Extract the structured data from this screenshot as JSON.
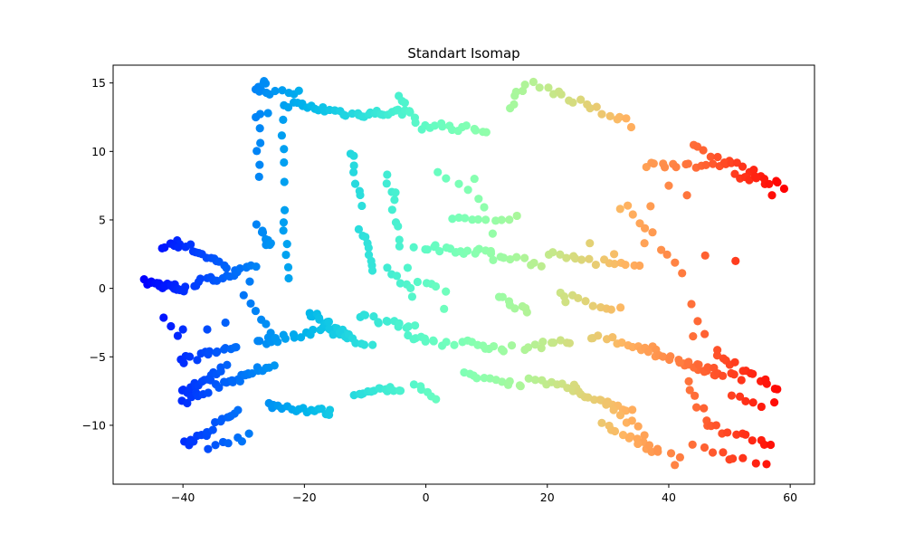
{
  "chart_data": {
    "type": "scatter",
    "title": "Standart Isomap",
    "xlabel": "",
    "ylabel": "",
    "xlim": [
      -51.5,
      64.0
    ],
    "ylim": [
      -14.3,
      16.3
    ],
    "xticks": [
      -40,
      -20,
      0,
      20,
      40,
      60
    ],
    "yticks": [
      -10,
      -5,
      0,
      5,
      10,
      15
    ],
    "xtick_labels": [
      "−40",
      "−20",
      "0",
      "20",
      "40",
      "60"
    ],
    "ytick_labels": [
      "−10",
      "−5",
      "0",
      "5",
      "10",
      "15"
    ],
    "grid": false,
    "colormap": "rainbow",
    "color_range": [
      -46,
      59
    ],
    "clusters": [
      {
        "from": [
          -46,
          0.45
        ],
        "to": [
          -39.5,
          -0.1
        ],
        "n": 22
      },
      {
        "from": [
          -41,
          3.5
        ],
        "to": [
          -33,
          1.6
        ],
        "n": 16
      },
      {
        "from": [
          -43.5,
          3.0
        ],
        "to": [
          -40.5,
          3.2
        ],
        "n": 6
      },
      {
        "from": [
          -38.5,
          0.3
        ],
        "to": [
          -28,
          1.5
        ],
        "n": 20
      },
      {
        "from": [
          -43,
          -2.0
        ],
        "to": [
          -40.5,
          -3.6
        ],
        "n": 3
      },
      {
        "from": [
          -40.5,
          -5.3
        ],
        "to": [
          -31,
          -4.2
        ],
        "n": 16
      },
      {
        "from": [
          -40.5,
          -7.7
        ],
        "to": [
          -33,
          -5.8
        ],
        "n": 18
      },
      {
        "from": [
          -40.5,
          -8.3
        ],
        "to": [
          -28,
          -6.0
        ],
        "n": 16
      },
      {
        "from": [
          -39.5,
          -11.4
        ],
        "to": [
          -31,
          -9.0
        ],
        "n": 18
      },
      {
        "from": [
          -36,
          -11.8
        ],
        "to": [
          -29,
          -10.8
        ],
        "n": 7
      },
      {
        "from": [
          -33,
          -7.0
        ],
        "to": [
          -25,
          -5.5
        ],
        "n": 12
      },
      {
        "from": [
          -28,
          -4.0
        ],
        "to": [
          -17,
          -3.0
        ],
        "n": 16
      },
      {
        "from": [
          -26,
          -8.5
        ],
        "to": [
          -15.5,
          -9.1
        ],
        "n": 18
      },
      {
        "from": [
          -27.5,
          14.7
        ],
        "to": [
          -26.5,
          15.2
        ],
        "n": 5
      },
      {
        "from": [
          -28,
          14.5
        ],
        "to": [
          -21,
          14.2
        ],
        "n": 9
      },
      {
        "from": [
          -27.5,
          12.5
        ],
        "to": [
          -27.5,
          8.2
        ],
        "n": 6
      },
      {
        "from": [
          -23.5,
          12.5
        ],
        "to": [
          -23,
          8.0
        ],
        "n": 5
      },
      {
        "from": [
          -27.5,
          4.5
        ],
        "to": [
          -25.5,
          3.0
        ],
        "n": 10
      },
      {
        "from": [
          -23.5,
          5.8
        ],
        "to": [
          -22.8,
          0.5
        ],
        "n": 7
      },
      {
        "from": [
          -29,
          -1.0
        ],
        "to": [
          -25,
          -3.8
        ],
        "n": 6
      },
      {
        "from": [
          -23,
          13.5
        ],
        "to": [
          -13,
          12.8
        ],
        "n": 18
      },
      {
        "from": [
          -12,
          12.7
        ],
        "to": [
          -3,
          12.9
        ],
        "n": 18
      },
      {
        "from": [
          -19.5,
          -1.7
        ],
        "to": [
          -13,
          -3.5
        ],
        "n": 16
      },
      {
        "from": [
          -16,
          -3.0
        ],
        "to": [
          -9,
          -4.3
        ],
        "n": 10
      },
      {
        "from": [
          -11.5,
          -7.7
        ],
        "to": [
          -4,
          -7.3
        ],
        "n": 16
      },
      {
        "from": [
          -11,
          -2.0
        ],
        "to": [
          -2,
          -2.8
        ],
        "n": 14
      },
      {
        "from": [
          -12.5,
          10.0
        ],
        "to": [
          -10.5,
          6.0
        ],
        "n": 8
      },
      {
        "from": [
          -6.5,
          8.5
        ],
        "to": [
          -4,
          3.0
        ],
        "n": 9
      },
      {
        "from": [
          -11,
          4.5
        ],
        "to": [
          -8.5,
          1.5
        ],
        "n": 8
      },
      {
        "from": [
          -6,
          1.5
        ],
        "to": [
          -2,
          -0.5
        ],
        "n": 7
      },
      {
        "from": [
          -4.5,
          14.1
        ],
        "to": [
          -1,
          11.5
        ],
        "n": 8
      },
      {
        "from": [
          -3,
          -3.5
        ],
        "to": [
          3,
          -4.0
        ],
        "n": 10
      },
      {
        "from": [
          -2,
          -7.2
        ],
        "to": [
          2,
          -8.0
        ],
        "n": 6
      },
      {
        "from": [
          0,
          12.0
        ],
        "to": [
          10,
          11.5
        ],
        "n": 14
      },
      {
        "from": [
          0,
          3.0
        ],
        "to": [
          11,
          2.6
        ],
        "n": 18
      },
      {
        "from": [
          2,
          8.6
        ],
        "to": [
          10,
          6.0
        ],
        "n": 6
      },
      {
        "from": [
          4,
          5.0
        ],
        "to": [
          14,
          5.0
        ],
        "n": 9
      },
      {
        "from": [
          5,
          -3.9
        ],
        "to": [
          14,
          -4.4
        ],
        "n": 12
      },
      {
        "from": [
          6,
          -6.3
        ],
        "to": [
          16,
          -7.0
        ],
        "n": 12
      },
      {
        "from": [
          -1,
          0.5
        ],
        "to": [
          3,
          -0.2
        ],
        "n": 5
      },
      {
        "from": [
          14,
          13.3
        ],
        "to": [
          16,
          15.0
        ],
        "n": 6
      },
      {
        "from": [
          11,
          2.3
        ],
        "to": [
          19,
          1.8
        ],
        "n": 9
      },
      {
        "from": [
          12,
          -0.5
        ],
        "to": [
          17,
          -1.8
        ],
        "n": 8
      },
      {
        "from": [
          16,
          -4.3
        ],
        "to": [
          24,
          -3.8
        ],
        "n": 10
      },
      {
        "from": [
          17,
          -6.8
        ],
        "to": [
          25,
          -7.2
        ],
        "n": 10
      },
      {
        "from": [
          18,
          14.9
        ],
        "to": [
          34,
          12.0
        ],
        "n": 18
      },
      {
        "from": [
          20,
          2.5
        ],
        "to": [
          35,
          1.5
        ],
        "n": 16
      },
      {
        "from": [
          22,
          -0.5
        ],
        "to": [
          32,
          -1.5
        ],
        "n": 10
      },
      {
        "from": [
          27,
          -3.5
        ],
        "to": [
          38,
          -4.5
        ],
        "n": 14
      },
      {
        "from": [
          24,
          -7.5
        ],
        "to": [
          34,
          -9.0
        ],
        "n": 14
      },
      {
        "from": [
          29,
          -8.3
        ],
        "to": [
          36,
          -10.5
        ],
        "n": 8
      },
      {
        "from": [
          29,
          -9.8
        ],
        "to": [
          38,
          -12.0
        ],
        "n": 12
      },
      {
        "from": [
          35,
          -11.5
        ],
        "to": [
          42,
          -12.3
        ],
        "n": 5
      },
      {
        "from": [
          33,
          5.8
        ],
        "to": [
          37,
          4.0
        ],
        "n": 5
      },
      {
        "from": [
          36,
          9.0
        ],
        "to": [
          50,
          9.1
        ],
        "n": 16
      },
      {
        "from": [
          44,
          10.3
        ],
        "to": [
          55,
          8.3
        ],
        "n": 12
      },
      {
        "from": [
          51,
          8.2
        ],
        "to": [
          59,
          7.5
        ],
        "n": 12
      },
      {
        "from": [
          37,
          -4.6
        ],
        "to": [
          48,
          -6.4
        ],
        "n": 16
      },
      {
        "from": [
          42,
          -5.3
        ],
        "to": [
          52,
          -6.6
        ],
        "n": 12
      },
      {
        "from": [
          48,
          -4.8
        ],
        "to": [
          58,
          -7.5
        ],
        "n": 14
      },
      {
        "from": [
          50,
          -8.0
        ],
        "to": [
          57,
          -8.5
        ],
        "n": 6
      },
      {
        "from": [
          43,
          -7.0
        ],
        "to": [
          46,
          -9.5
        ],
        "n": 6
      },
      {
        "from": [
          46,
          -10.0
        ],
        "to": [
          57,
          -11.3
        ],
        "n": 12
      },
      {
        "from": [
          44,
          -11.5
        ],
        "to": [
          56,
          -12.8
        ],
        "n": 8
      },
      {
        "from": [
          39,
          3.0
        ],
        "to": [
          42,
          1.0
        ],
        "n": 4
      },
      {
        "from": [
          44,
          -1.0
        ],
        "to": [
          46,
          -3.5
        ],
        "n": 3
      }
    ],
    "extra_points": [
      [
        -40,
        -3.0
      ],
      [
        -36,
        -3.0
      ],
      [
        -33,
        -2.5
      ],
      [
        -30,
        -0.5
      ],
      [
        -29,
        0.5
      ],
      [
        -28,
        12.5
      ],
      [
        -26,
        12.8
      ],
      [
        -9,
        2.0
      ],
      [
        -5,
        7.0
      ],
      [
        -3,
        1.5
      ],
      [
        -2,
        3.0
      ],
      [
        3,
        -1.5
      ],
      [
        8,
        8.0
      ],
      [
        11,
        4.0
      ],
      [
        15,
        5.3
      ],
      [
        23,
        -1.0
      ],
      [
        27,
        3.3
      ],
      [
        31,
        2.5
      ],
      [
        36,
        3.3
      ],
      [
        37,
        6.0
      ],
      [
        40,
        7.5
      ],
      [
        43,
        6.8
      ],
      [
        46,
        2.4
      ],
      [
        51,
        2.0
      ],
      [
        48,
        -4.5
      ],
      [
        44,
        -3.5
      ],
      [
        41,
        -12.9
      ],
      [
        50,
        -12.5
      ],
      [
        32,
        5.8
      ],
      [
        57,
        6.8
      ]
    ]
  }
}
